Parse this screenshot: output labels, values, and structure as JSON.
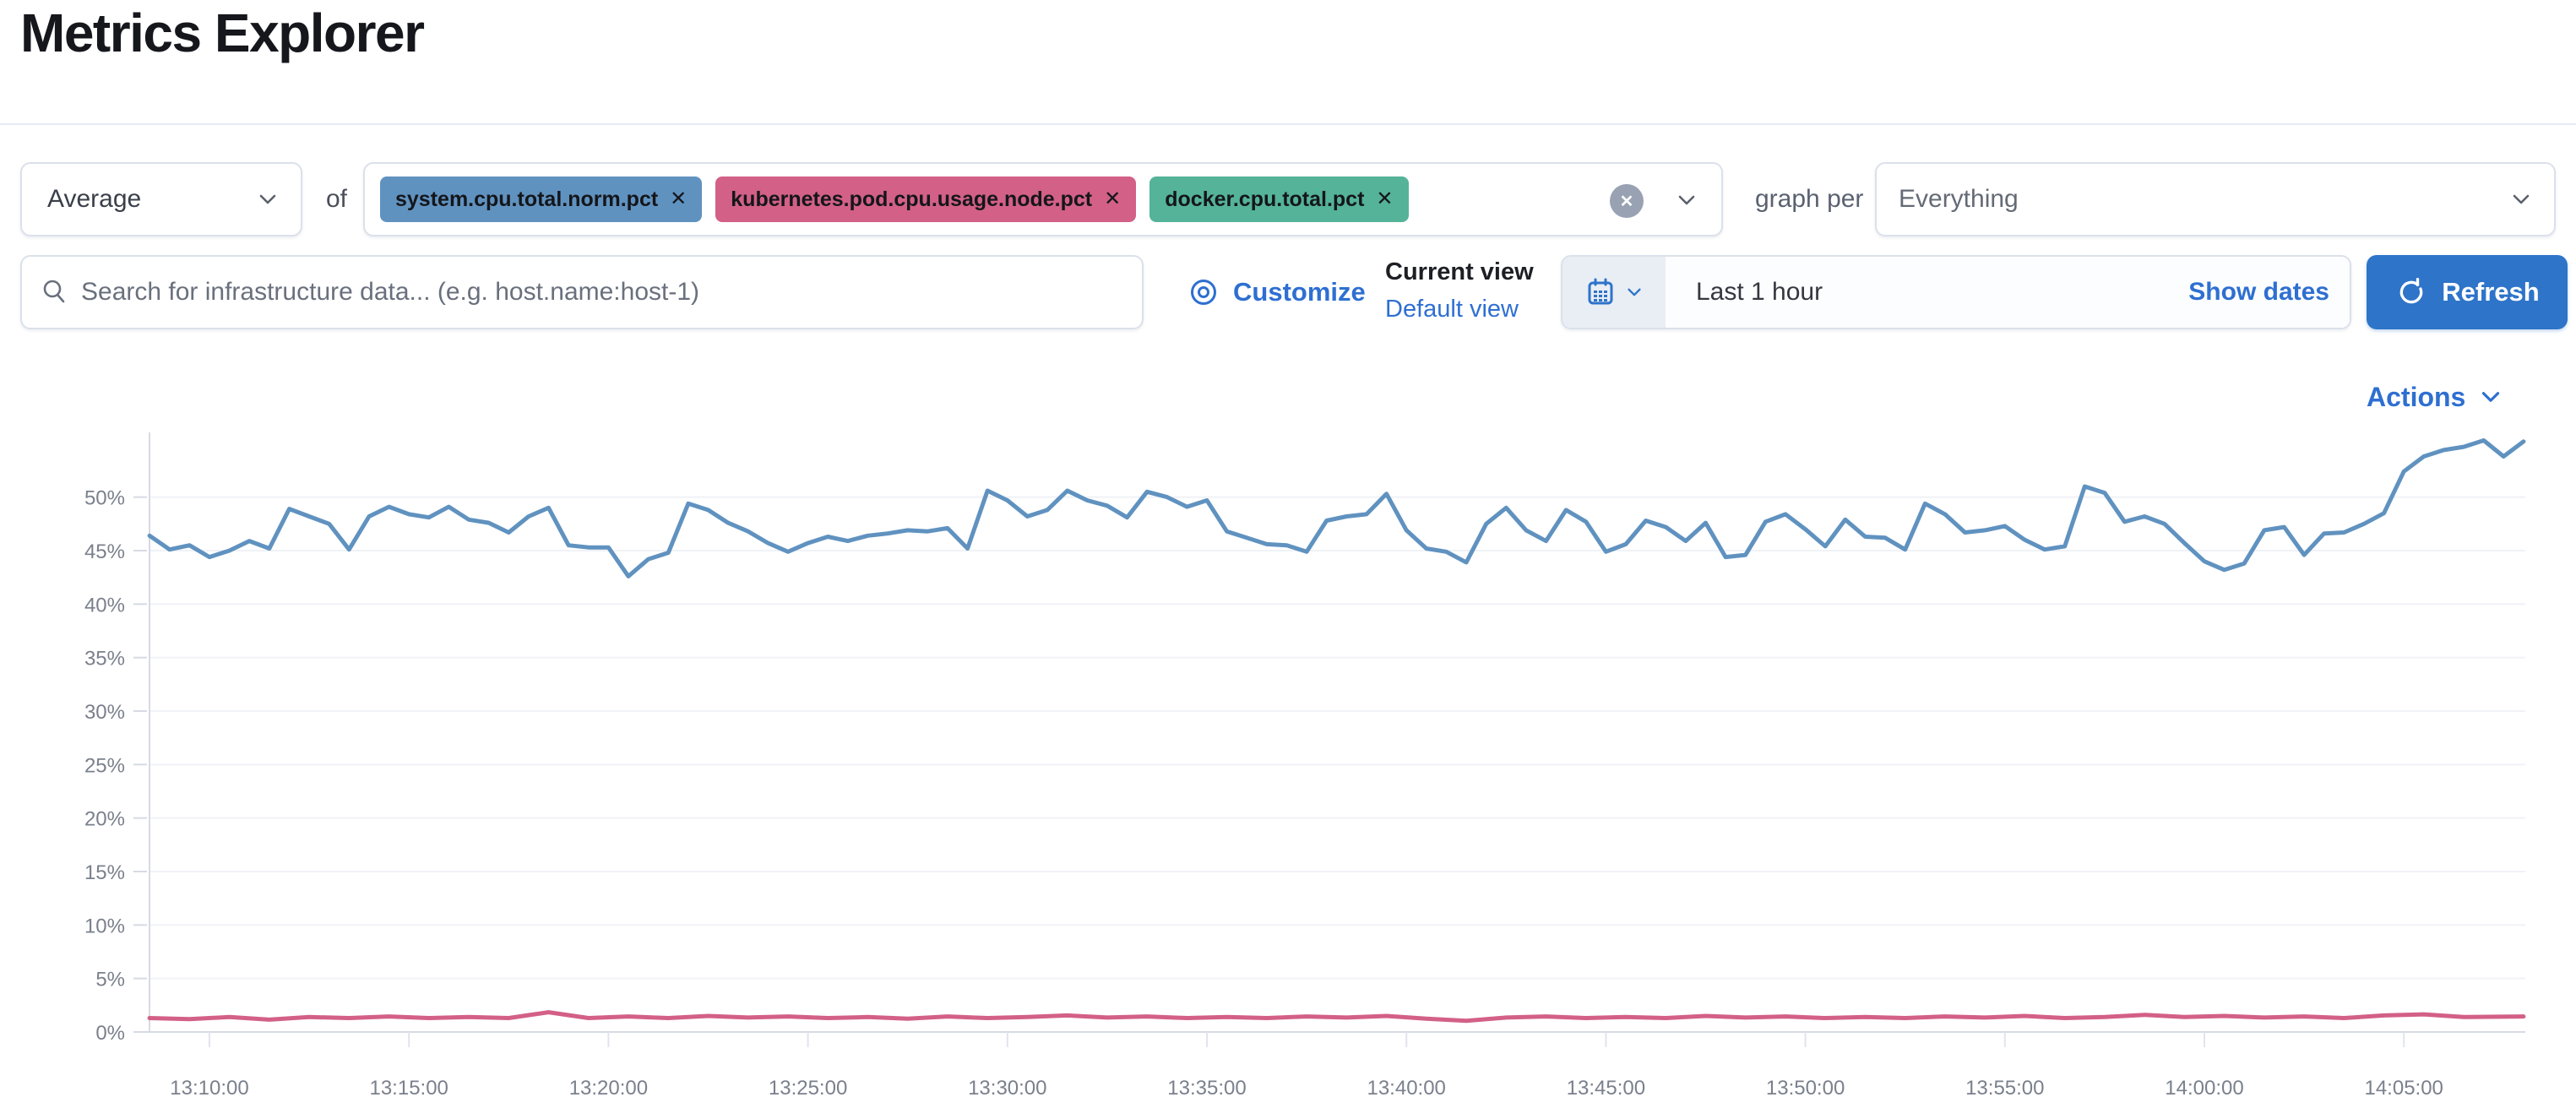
{
  "page": {
    "title": "Metrics Explorer"
  },
  "toolbar": {
    "aggregation_value": "Average",
    "of_label": "of",
    "metrics": [
      {
        "label": "system.cpu.total.norm.pct",
        "color": "#6092C0"
      },
      {
        "label": "kubernetes.pod.cpu.usage.node.pct",
        "color": "#D36086"
      },
      {
        "label": "docker.cpu.total.pct",
        "color": "#54B399"
      }
    ],
    "clear_icon": "cross-in-circle",
    "graph_per_label": "graph per",
    "group_by_value": "Everything"
  },
  "filter_bar": {
    "search_placeholder": "Search for infrastructure data... (e.g. host.name:host-1)",
    "customize_label": "Customize",
    "current_view_label": "Current view",
    "default_view_label": "Default view",
    "time_range_value": "Last 1 hour",
    "show_dates_label": "Show dates",
    "refresh_label": "Refresh"
  },
  "chart_header": {
    "actions_label": "Actions"
  },
  "chart_data": {
    "type": "line",
    "title": "",
    "xlabel": "",
    "ylabel": "",
    "grid": true,
    "legend": "none",
    "ylim": [
      0,
      55
    ],
    "y_tick_labels": [
      "0%",
      "5%",
      "10%",
      "15%",
      "20%",
      "25%",
      "30%",
      "35%",
      "40%",
      "45%",
      "50%"
    ],
    "x_tick_labels": [
      "13:10:00",
      "13:15:00",
      "13:20:00",
      "13:25:00",
      "13:30:00",
      "13:35:00",
      "13:40:00",
      "13:45:00",
      "13:50:00",
      "13:55:00",
      "14:00:00",
      "14:05:00"
    ],
    "x_range": [
      "13:08:30",
      "14:08:00"
    ],
    "y_unit": "percent",
    "series": [
      {
        "name": "system.cpu.total.norm.pct",
        "color": "#6092C0",
        "points": [
          [
            "13:08:30",
            46.4
          ],
          [
            "13:09:00",
            45.1
          ],
          [
            "13:09:30",
            45.5
          ],
          [
            "13:10:00",
            44.4
          ],
          [
            "13:10:30",
            45.0
          ],
          [
            "13:11:00",
            45.9
          ],
          [
            "13:11:30",
            45.2
          ],
          [
            "13:12:00",
            48.9
          ],
          [
            "13:12:30",
            48.2
          ],
          [
            "13:13:00",
            47.5
          ],
          [
            "13:13:30",
            45.1
          ],
          [
            "13:14:00",
            48.2
          ],
          [
            "13:14:30",
            49.1
          ],
          [
            "13:15:00",
            48.4
          ],
          [
            "13:15:30",
            48.1
          ],
          [
            "13:16:00",
            49.1
          ],
          [
            "13:16:30",
            47.9
          ],
          [
            "13:17:00",
            47.6
          ],
          [
            "13:17:30",
            46.7
          ],
          [
            "13:18:00",
            48.2
          ],
          [
            "13:18:30",
            49.0
          ],
          [
            "13:19:00",
            45.5
          ],
          [
            "13:19:30",
            45.3
          ],
          [
            "13:20:00",
            45.3
          ],
          [
            "13:20:30",
            42.6
          ],
          [
            "13:21:00",
            44.2
          ],
          [
            "13:21:30",
            44.8
          ],
          [
            "13:22:00",
            49.4
          ],
          [
            "13:22:30",
            48.8
          ],
          [
            "13:23:00",
            47.6
          ],
          [
            "13:23:30",
            46.8
          ],
          [
            "13:24:00",
            45.7
          ],
          [
            "13:24:30",
            44.9
          ],
          [
            "13:25:00",
            45.7
          ],
          [
            "13:25:30",
            46.3
          ],
          [
            "13:26:00",
            45.9
          ],
          [
            "13:26:30",
            46.4
          ],
          [
            "13:27:00",
            46.6
          ],
          [
            "13:27:30",
            46.9
          ],
          [
            "13:28:00",
            46.8
          ],
          [
            "13:28:30",
            47.1
          ],
          [
            "13:29:00",
            45.2
          ],
          [
            "13:29:30",
            50.6
          ],
          [
            "13:30:00",
            49.7
          ],
          [
            "13:30:30",
            48.2
          ],
          [
            "13:31:00",
            48.8
          ],
          [
            "13:31:30",
            50.6
          ],
          [
            "13:32:00",
            49.7
          ],
          [
            "13:32:30",
            49.2
          ],
          [
            "13:33:00",
            48.1
          ],
          [
            "13:33:30",
            50.5
          ],
          [
            "13:34:00",
            50.0
          ],
          [
            "13:34:30",
            49.1
          ],
          [
            "13:35:00",
            49.7
          ],
          [
            "13:35:30",
            46.8
          ],
          [
            "13:36:00",
            46.2
          ],
          [
            "13:36:30",
            45.6
          ],
          [
            "13:37:00",
            45.5
          ],
          [
            "13:37:30",
            44.9
          ],
          [
            "13:38:00",
            47.8
          ],
          [
            "13:38:30",
            48.2
          ],
          [
            "13:39:00",
            48.4
          ],
          [
            "13:39:30",
            50.3
          ],
          [
            "13:40:00",
            46.9
          ],
          [
            "13:40:30",
            45.2
          ],
          [
            "13:41:00",
            44.9
          ],
          [
            "13:41:30",
            43.9
          ],
          [
            "13:42:00",
            47.5
          ],
          [
            "13:42:30",
            49.0
          ],
          [
            "13:43:00",
            46.9
          ],
          [
            "13:43:30",
            45.9
          ],
          [
            "13:44:00",
            48.8
          ],
          [
            "13:44:30",
            47.7
          ],
          [
            "13:45:00",
            44.9
          ],
          [
            "13:45:30",
            45.6
          ],
          [
            "13:46:00",
            47.8
          ],
          [
            "13:46:30",
            47.2
          ],
          [
            "13:47:00",
            45.9
          ],
          [
            "13:47:30",
            47.6
          ],
          [
            "13:48:00",
            44.4
          ],
          [
            "13:48:30",
            44.6
          ],
          [
            "13:49:00",
            47.7
          ],
          [
            "13:49:30",
            48.4
          ],
          [
            "13:50:00",
            47.0
          ],
          [
            "13:50:30",
            45.4
          ],
          [
            "13:51:00",
            47.9
          ],
          [
            "13:51:30",
            46.3
          ],
          [
            "13:52:00",
            46.2
          ],
          [
            "13:52:30",
            45.1
          ],
          [
            "13:53:00",
            49.4
          ],
          [
            "13:53:30",
            48.4
          ],
          [
            "13:54:00",
            46.7
          ],
          [
            "13:54:30",
            46.9
          ],
          [
            "13:55:00",
            47.3
          ],
          [
            "13:55:30",
            46.0
          ],
          [
            "13:56:00",
            45.1
          ],
          [
            "13:56:30",
            45.4
          ],
          [
            "13:57:00",
            51.0
          ],
          [
            "13:57:30",
            50.4
          ],
          [
            "13:58:00",
            47.7
          ],
          [
            "13:58:30",
            48.2
          ],
          [
            "13:59:00",
            47.5
          ],
          [
            "13:59:30",
            45.7
          ],
          [
            "14:00:00",
            44.0
          ],
          [
            "14:00:30",
            43.2
          ],
          [
            "14:01:00",
            43.8
          ],
          [
            "14:01:30",
            46.9
          ],
          [
            "14:02:00",
            47.2
          ],
          [
            "14:02:30",
            44.6
          ],
          [
            "14:03:00",
            46.6
          ],
          [
            "14:03:30",
            46.7
          ],
          [
            "14:04:00",
            47.5
          ],
          [
            "14:04:30",
            48.5
          ],
          [
            "14:05:00",
            52.4
          ],
          [
            "14:05:30",
            53.8
          ],
          [
            "14:06:00",
            54.4
          ],
          [
            "14:06:30",
            54.7
          ],
          [
            "14:07:00",
            55.3
          ],
          [
            "14:07:30",
            53.8
          ],
          [
            "14:08:00",
            55.2
          ]
        ]
      },
      {
        "name": "kubernetes.pod.cpu.usage.node.pct",
        "color": "#D36086",
        "points": [
          [
            "13:08:30",
            1.3
          ],
          [
            "13:09:30",
            1.2
          ],
          [
            "13:10:30",
            1.4
          ],
          [
            "13:11:30",
            1.15
          ],
          [
            "13:12:30",
            1.4
          ],
          [
            "13:13:30",
            1.3
          ],
          [
            "13:14:30",
            1.45
          ],
          [
            "13:15:30",
            1.3
          ],
          [
            "13:16:30",
            1.4
          ],
          [
            "13:17:30",
            1.3
          ],
          [
            "13:18:30",
            1.85
          ],
          [
            "13:19:30",
            1.3
          ],
          [
            "13:20:30",
            1.45
          ],
          [
            "13:21:30",
            1.3
          ],
          [
            "13:22:30",
            1.5
          ],
          [
            "13:23:30",
            1.35
          ],
          [
            "13:24:30",
            1.45
          ],
          [
            "13:25:30",
            1.3
          ],
          [
            "13:26:30",
            1.4
          ],
          [
            "13:27:30",
            1.25
          ],
          [
            "13:28:30",
            1.45
          ],
          [
            "13:29:30",
            1.3
          ],
          [
            "13:30:30",
            1.4
          ],
          [
            "13:31:30",
            1.55
          ],
          [
            "13:32:30",
            1.35
          ],
          [
            "13:33:30",
            1.45
          ],
          [
            "13:34:30",
            1.3
          ],
          [
            "13:35:30",
            1.4
          ],
          [
            "13:36:30",
            1.3
          ],
          [
            "13:37:30",
            1.45
          ],
          [
            "13:38:30",
            1.35
          ],
          [
            "13:39:30",
            1.5
          ],
          [
            "13:40:30",
            1.25
          ],
          [
            "13:41:30",
            1.05
          ],
          [
            "13:42:30",
            1.35
          ],
          [
            "13:43:30",
            1.45
          ],
          [
            "13:44:30",
            1.3
          ],
          [
            "13:45:30",
            1.4
          ],
          [
            "13:46:30",
            1.3
          ],
          [
            "13:47:30",
            1.5
          ],
          [
            "13:48:30",
            1.35
          ],
          [
            "13:49:30",
            1.45
          ],
          [
            "13:50:30",
            1.3
          ],
          [
            "13:51:30",
            1.4
          ],
          [
            "13:52:30",
            1.3
          ],
          [
            "13:53:30",
            1.45
          ],
          [
            "13:54:30",
            1.35
          ],
          [
            "13:55:30",
            1.5
          ],
          [
            "13:56:30",
            1.3
          ],
          [
            "13:57:30",
            1.4
          ],
          [
            "13:58:30",
            1.6
          ],
          [
            "13:59:30",
            1.4
          ],
          [
            "14:00:30",
            1.5
          ],
          [
            "14:01:30",
            1.35
          ],
          [
            "14:02:30",
            1.45
          ],
          [
            "14:03:30",
            1.3
          ],
          [
            "14:04:30",
            1.55
          ],
          [
            "14:05:30",
            1.65
          ],
          [
            "14:06:30",
            1.4
          ],
          [
            "14:08:00",
            1.45
          ]
        ]
      }
    ]
  }
}
